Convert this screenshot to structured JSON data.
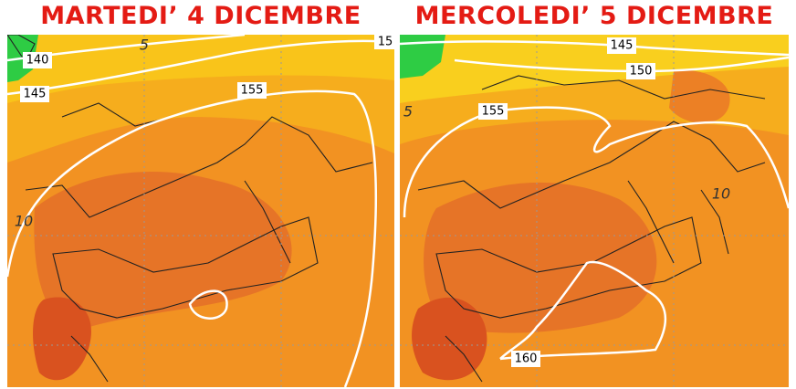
{
  "panels": [
    {
      "title": "MARTEDI’ 4 DICEMBRE",
      "labels": [
        "140",
        "145",
        "155",
        "15",
        "5",
        "10"
      ]
    },
    {
      "title": "MERCOLEDI’ 5 DICEMBRE",
      "labels": [
        "145",
        "150",
        "155",
        "160",
        "5",
        "10"
      ]
    }
  ]
}
